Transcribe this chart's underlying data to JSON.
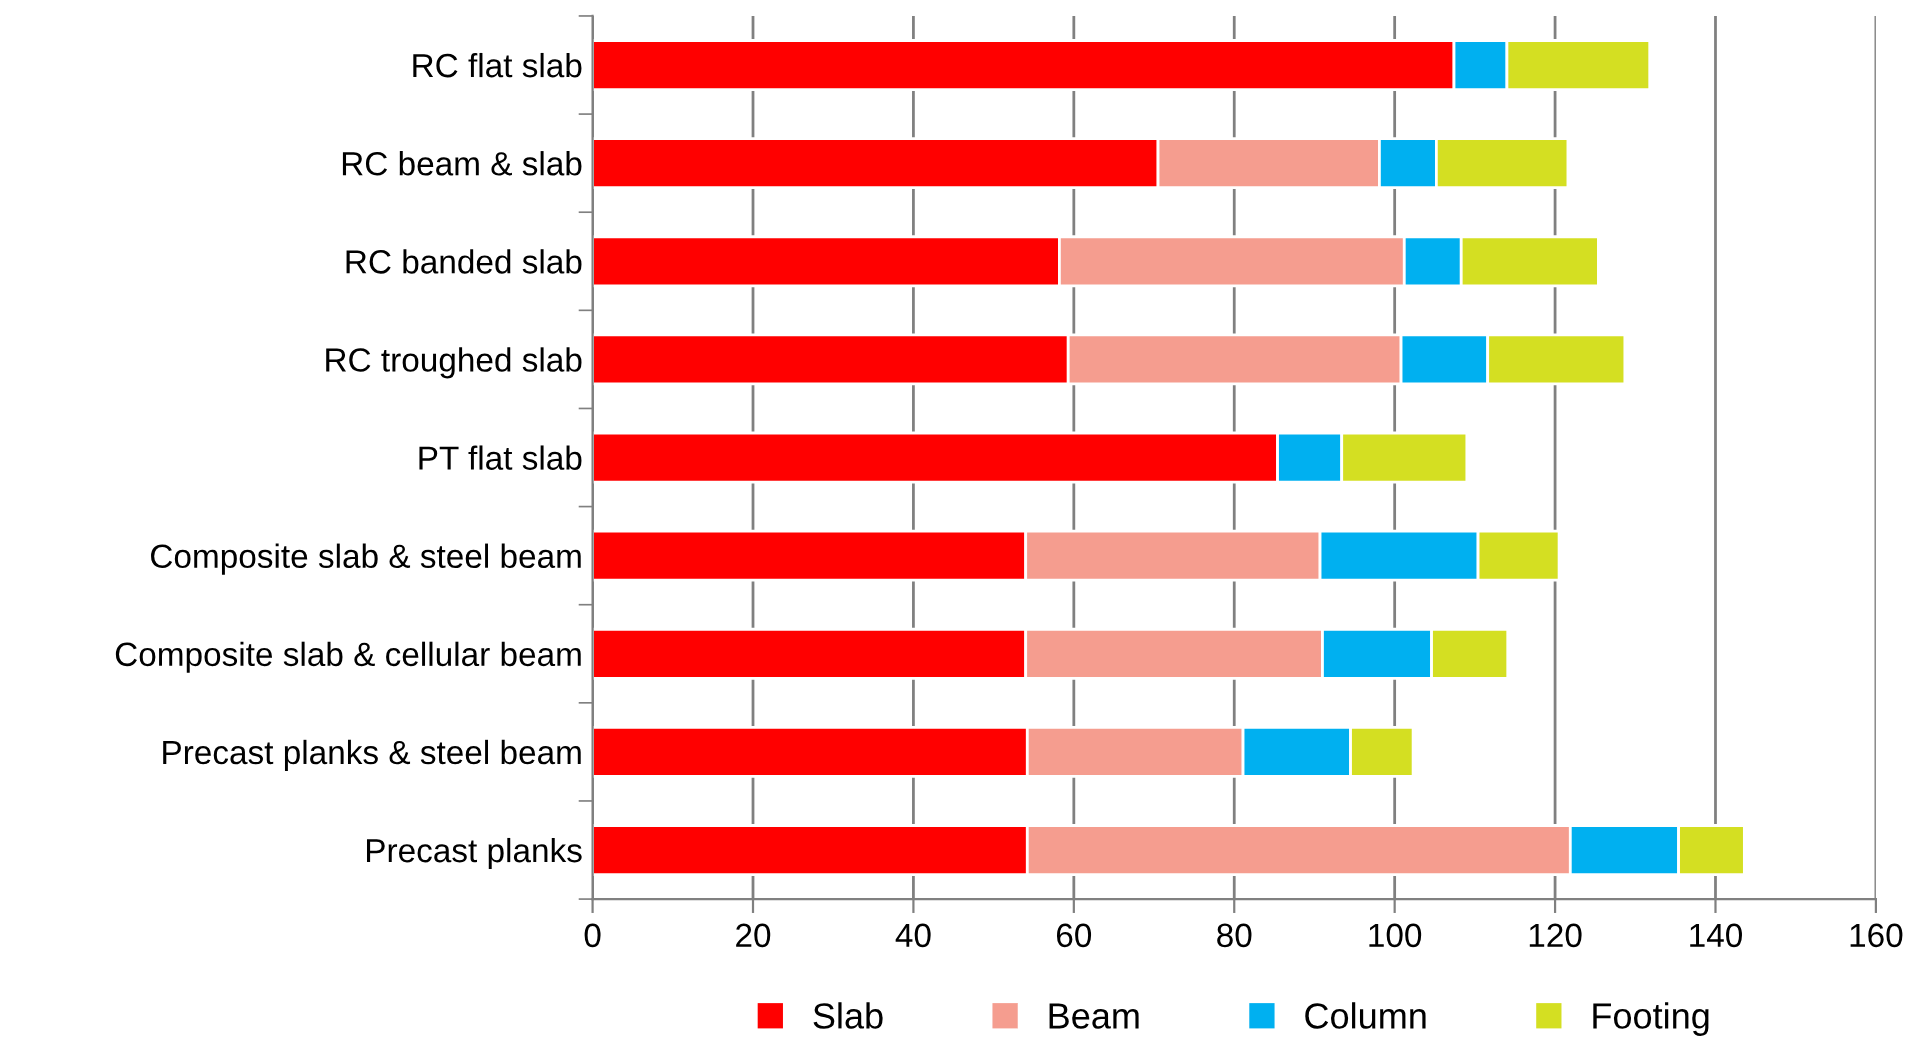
{
  "chart_data": {
    "type": "bar",
    "orientation": "horizontal",
    "stacked": true,
    "categories": [
      "RC flat slab",
      "RC beam & slab",
      "RC banded slab",
      "RC troughed slab",
      "PT flat slab",
      "Composite slab & steel beam",
      "Composite slab & cellular beam",
      "Precast planks & steel beam",
      "Precast planks"
    ],
    "series": [
      {
        "name": "Slab",
        "color": "#ff0000",
        "values": [
          107.4,
          70.5,
          58.2,
          59.3,
          85.4,
          54.0,
          54.0,
          54.2,
          54.2
        ]
      },
      {
        "name": "Beam",
        "color": "#f59d8f",
        "values": [
          null,
          27.6,
          43.0,
          41.5,
          null,
          36.7,
          37.0,
          26.9,
          67.7
        ]
      },
      {
        "name": "Column",
        "color": "#00b0f0",
        "values": [
          6.6,
          7.1,
          7.1,
          10.8,
          8.0,
          19.7,
          13.6,
          13.4,
          13.5
        ]
      },
      {
        "name": "Footing",
        "color": "#d4df22",
        "values": [
          17.8,
          16.4,
          17.1,
          17.1,
          15.6,
          10.1,
          9.5,
          7.8,
          8.2
        ]
      }
    ],
    "xlim": [
      0,
      160
    ],
    "xticks": [
      0,
      20,
      40,
      60,
      80,
      100,
      120,
      140,
      160
    ],
    "grid": "x",
    "legend": "bottom"
  }
}
